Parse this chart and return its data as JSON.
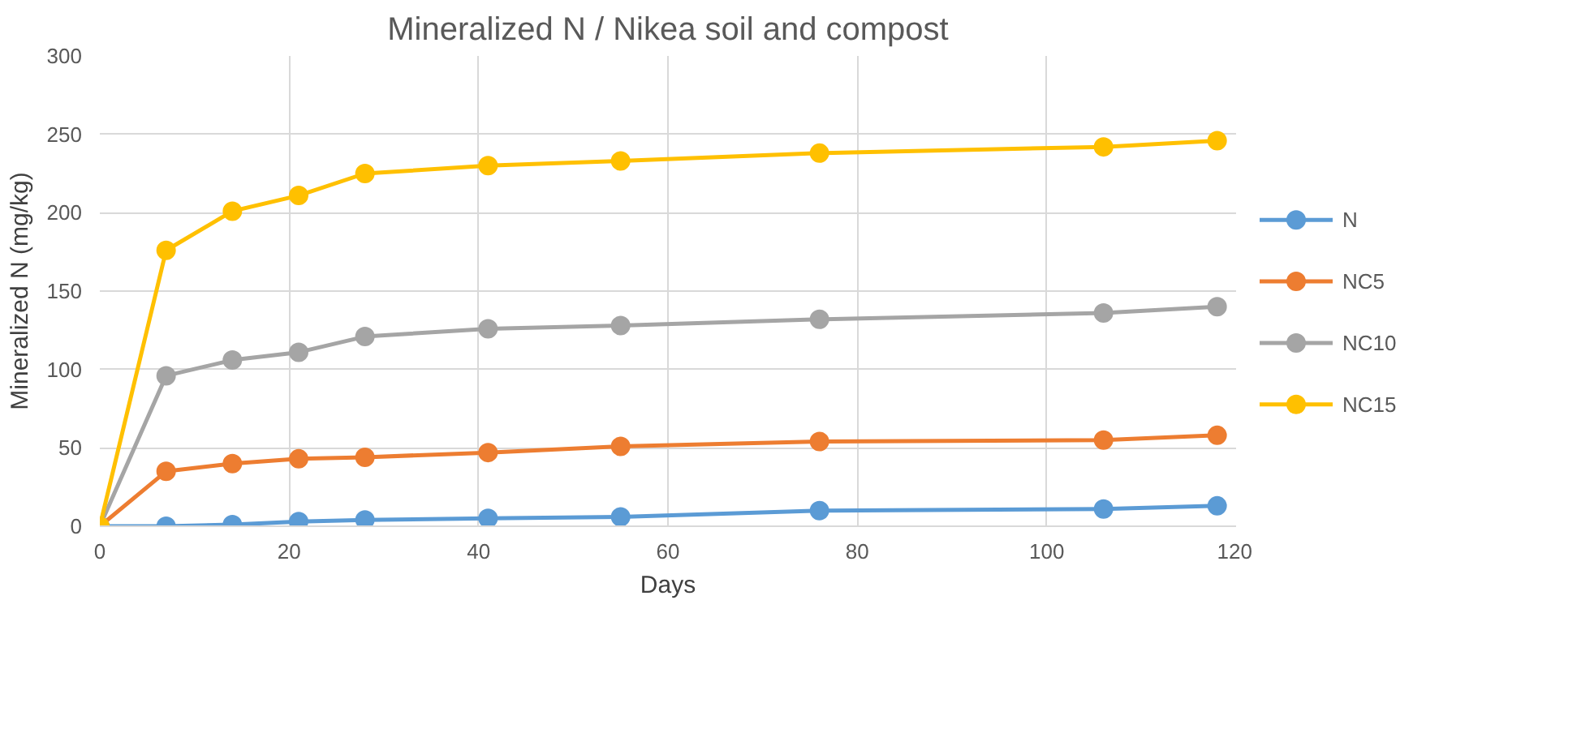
{
  "chart_data": {
    "type": "line",
    "title": "Mineralized N / Nikea soil and compost",
    "xlabel": "Days",
    "ylabel": "Mineralized N (mg/kg)",
    "x": [
      0,
      7,
      14,
      21,
      28,
      41,
      55,
      76,
      106,
      118
    ],
    "series": [
      {
        "name": "N",
        "color": "#5b9bd5",
        "values": [
          0,
          0,
          1,
          3,
          4,
          5,
          6,
          10,
          11,
          13
        ]
      },
      {
        "name": "NC5",
        "color": "#ed7d31",
        "values": [
          0,
          35,
          40,
          43,
          44,
          47,
          51,
          54,
          55,
          58
        ]
      },
      {
        "name": "NC10",
        "color": "#a5a5a5",
        "values": [
          0,
          96,
          106,
          111,
          121,
          126,
          128,
          132,
          136,
          140
        ]
      },
      {
        "name": "NC15",
        "color": "#ffc000",
        "values": [
          0,
          176,
          201,
          211,
          225,
          230,
          233,
          238,
          242,
          246
        ]
      }
    ],
    "xlim": [
      0,
      120
    ],
    "xticks": [
      0,
      20,
      40,
      60,
      80,
      100,
      120
    ],
    "ylim": [
      0,
      300
    ],
    "yticks": [
      0,
      50,
      100,
      150,
      200,
      250,
      300
    ],
    "grid": true,
    "legend": "right",
    "marker": "circle",
    "line_style": "solid"
  }
}
